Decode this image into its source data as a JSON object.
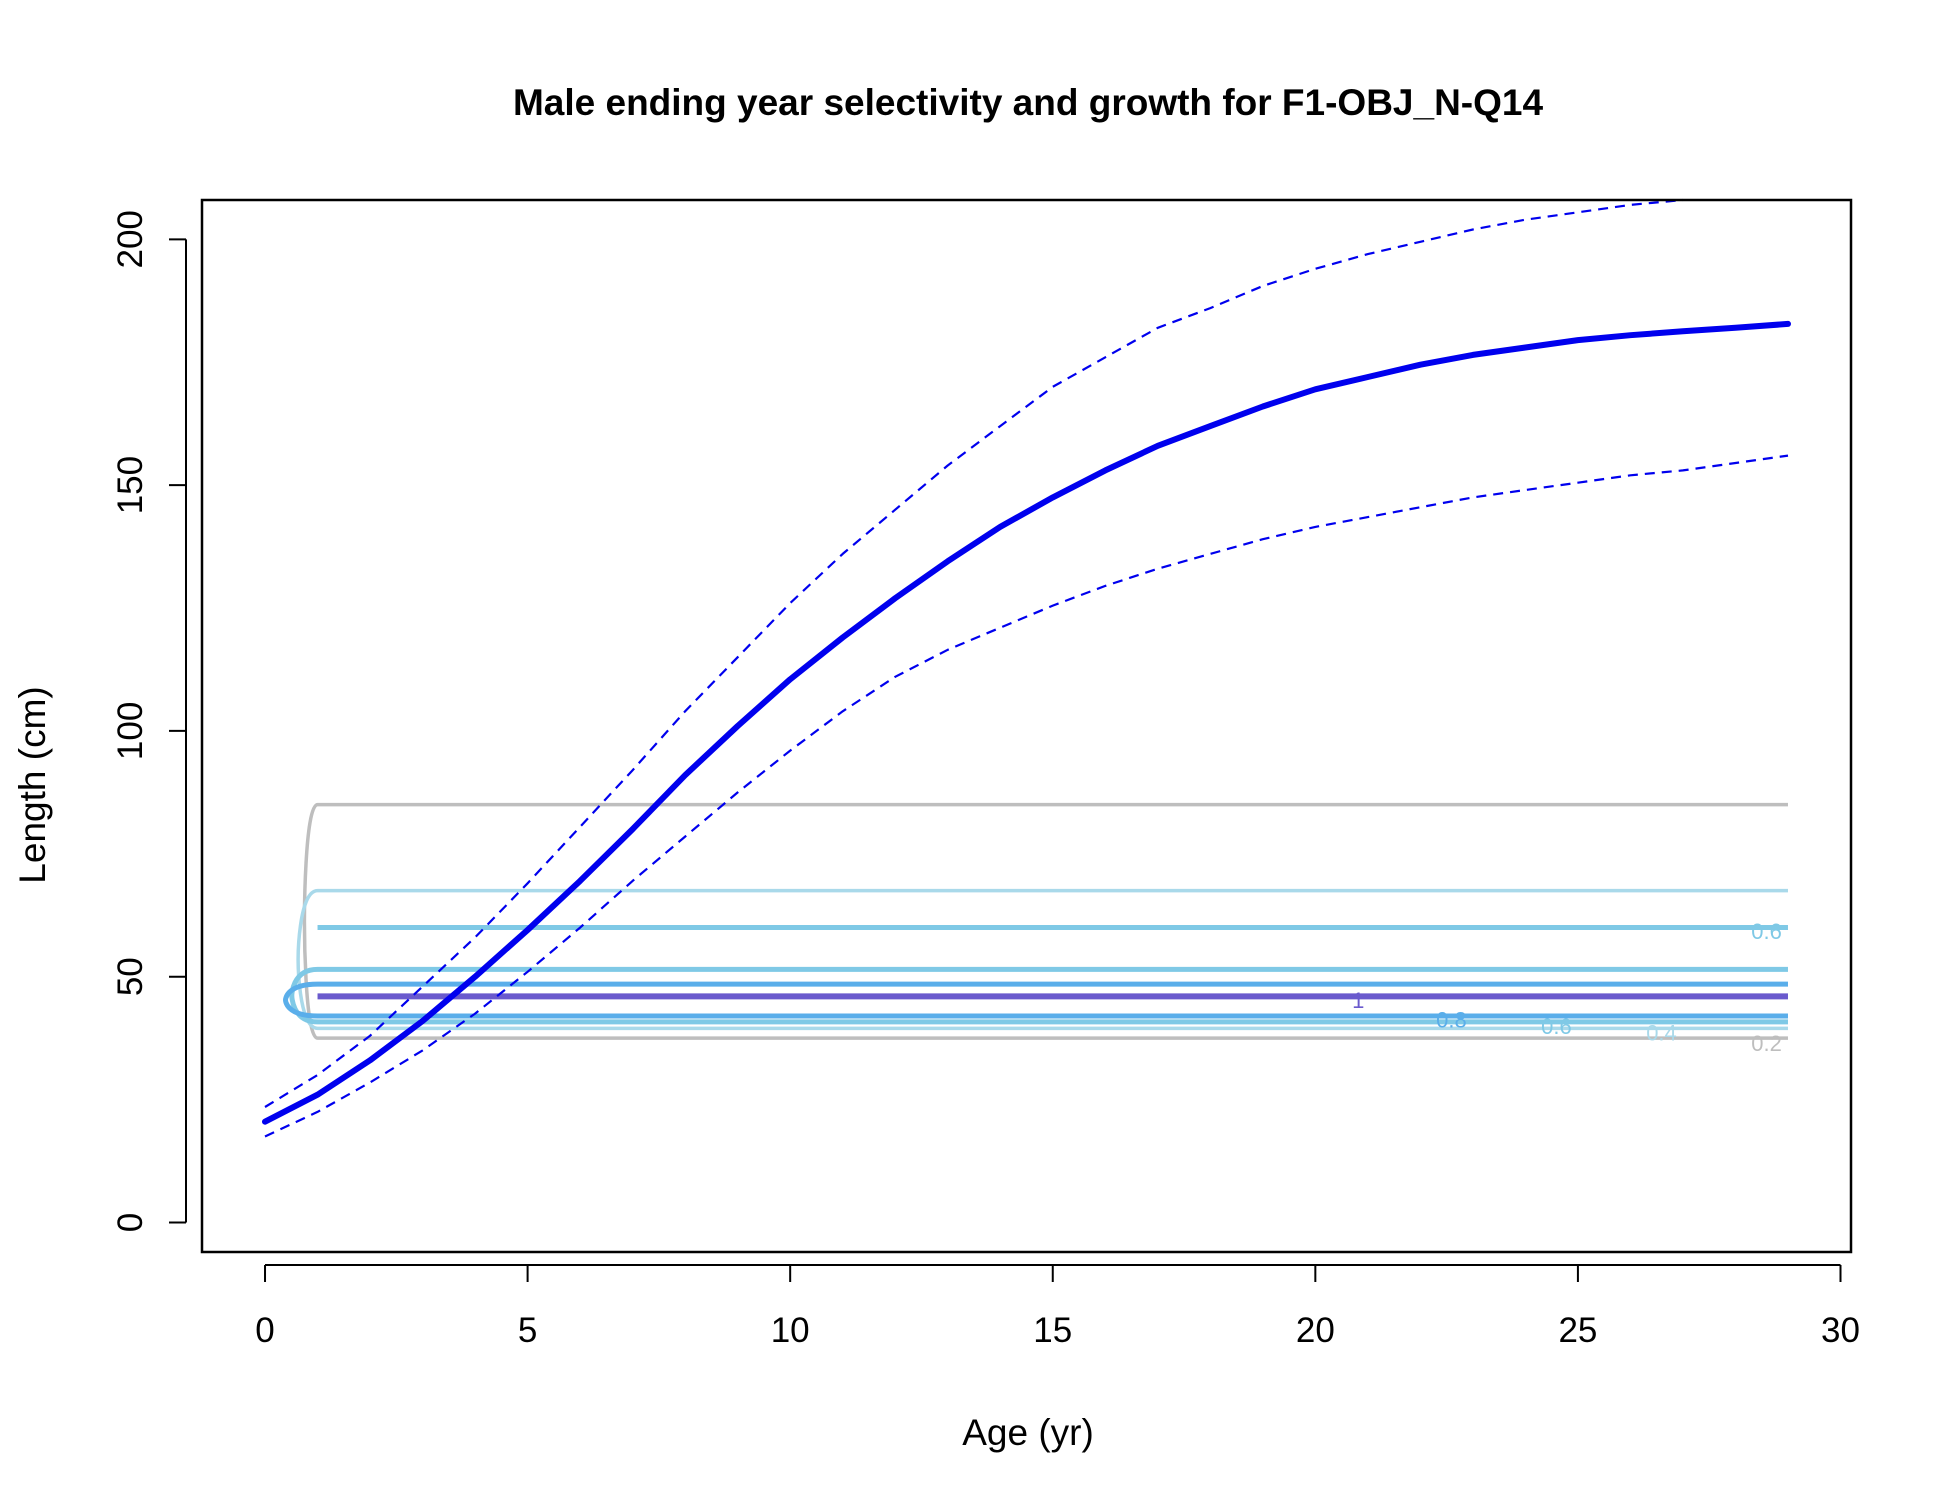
{
  "chart_data": {
    "type": "line",
    "title": "Male ending year selectivity and growth for F1-OBJ_N-Q14",
    "xlabel": "Age (yr)",
    "ylabel": "Length (cm)",
    "xlim": [
      -1.2,
      30.2
    ],
    "ylim": [
      -6,
      208
    ],
    "xticks": [
      0,
      5,
      10,
      15,
      20,
      25,
      30
    ],
    "yticks": [
      0,
      50,
      100,
      150,
      200
    ],
    "x_tick_labels": [
      "0",
      "5",
      "10",
      "15",
      "20",
      "25",
      "30"
    ],
    "y_tick_labels": [
      "0",
      "50",
      "100",
      "150",
      "200"
    ],
    "grid": false,
    "series": [
      {
        "role": "mean",
        "style": "solid",
        "color": "#0000ee",
        "x": [
          0,
          1,
          2,
          3,
          4,
          5,
          6,
          7,
          8,
          9,
          10,
          11,
          12,
          13,
          14,
          15,
          16,
          17,
          18,
          19,
          20,
          21,
          22,
          23,
          24,
          25,
          26,
          27,
          28,
          29
        ],
        "y": [
          20.5,
          26,
          33,
          41,
          50,
          59.5,
          69.5,
          80,
          91,
          101,
          110.5,
          119,
          127,
          134.5,
          141.5,
          147.5,
          153,
          158,
          162,
          166,
          169.5,
          172,
          174.5,
          176.5,
          178,
          179.5,
          180.5,
          181.3,
          182,
          182.8
        ]
      },
      {
        "role": "upper",
        "style": "dashed",
        "color": "#0000ee",
        "x": [
          0,
          1,
          2,
          3,
          4,
          5,
          6,
          7,
          8,
          9,
          10,
          11,
          12,
          13,
          14,
          15,
          16,
          17,
          18,
          19,
          20,
          21,
          22,
          23,
          24,
          25,
          26,
          27
        ],
        "y": [
          23.5,
          30,
          38,
          48,
          58,
          69,
          80.5,
          92,
          104,
          115,
          126,
          136,
          145,
          154,
          162,
          170,
          176,
          182,
          186,
          190.5,
          194,
          197,
          199.5,
          202,
          204,
          205.5,
          207,
          208
        ]
      },
      {
        "role": "lower",
        "style": "dashed",
        "color": "#0000ee",
        "x": [
          0,
          1,
          2,
          3,
          4,
          5,
          6,
          7,
          8,
          9,
          10,
          11,
          12,
          13,
          14,
          15,
          16,
          17,
          18,
          19,
          20,
          21,
          22,
          23,
          24,
          25,
          26,
          27,
          28,
          29
        ],
        "y": [
          17.5,
          22.5,
          28.5,
          35,
          42.5,
          51,
          60,
          69.5,
          78.5,
          87.5,
          96,
          104,
          111,
          116.5,
          121,
          125.5,
          129.5,
          133,
          136,
          139,
          141.5,
          143.5,
          145.5,
          147.5,
          149,
          150.5,
          152,
          153,
          154.5,
          156
        ]
      }
    ],
    "contours": [
      {
        "level": "0.2",
        "color": "#bebebe",
        "width": 3.5,
        "top": 85,
        "bottom": 37.5,
        "label_x": 28.3,
        "label_y": 36.5
      },
      {
        "level": "0.4",
        "color": "#a9d9ea",
        "width": 3.5,
        "top": 67.5,
        "bottom": 39.5,
        "label_x": 26.3,
        "label_y": 38.7
      },
      {
        "level": "0.6",
        "color": "#7fc9e6",
        "width": 5,
        "top": 51.5,
        "bottom": 40.8,
        "label_x": 24.3,
        "label_y": 40
      },
      {
        "level": "0.8",
        "color": "#5aaeea",
        "width": 5,
        "top": 48.5,
        "bottom": 42,
        "label_x": 22.3,
        "label_y": 41.3
      },
      {
        "level": "1",
        "color": "#6a5acd",
        "width": 6,
        "top": 46,
        "bottom": 46,
        "label_x": 20.7,
        "label_y": 45.3
      }
    ],
    "extra_contour": {
      "level": "0.6",
      "color": "#7fc9e6",
      "y": 60,
      "label_x": 28.3,
      "label_y": 59.3
    }
  }
}
